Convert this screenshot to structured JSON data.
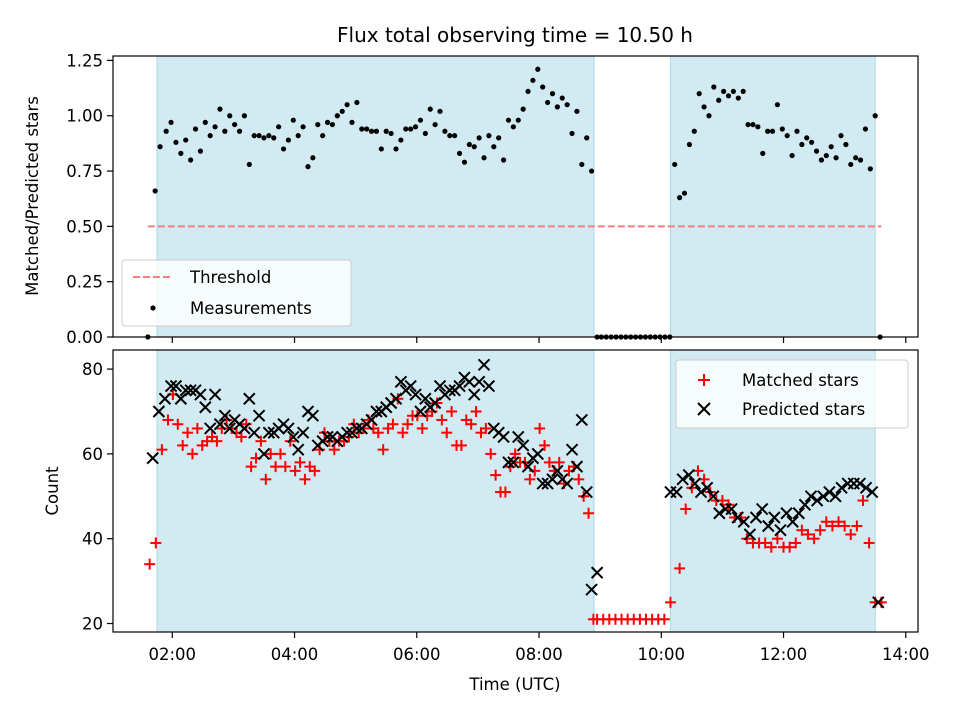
{
  "chart_data": [
    {
      "type": "scatter",
      "title": "Flux total observing time = 10.50 h",
      "ylabel": "Matched/Predicted stars",
      "xlabel": "",
      "ylim": [
        0,
        1.27
      ],
      "yticks": [
        0.0,
        0.25,
        0.5,
        0.75,
        1.0,
        1.25
      ],
      "ytick_labels": [
        "0.00",
        "0.25",
        "0.50",
        "0.75",
        "1.00",
        "1.25"
      ],
      "xlim_hours": [
        1.03,
        14.2
      ],
      "xticks_hours": [
        2,
        4,
        6,
        8,
        10,
        12,
        14
      ],
      "shaded_intervals_hours": [
        [
          1.75,
          8.9
        ],
        [
          10.15,
          13.5
        ]
      ],
      "shade_color": "#add8e6",
      "threshold": {
        "name": "Threshold",
        "value": 0.5,
        "x_range_hours": [
          1.6,
          13.6
        ],
        "color": "#f08080"
      },
      "legend": {
        "placement": "lower left",
        "entries": [
          "Threshold",
          "Measurements"
        ]
      },
      "series": [
        {
          "name": "Measurements",
          "color": "#000000",
          "x_hours": [
            1.6,
            1.72,
            1.8,
            1.9,
            1.98,
            2.06,
            2.14,
            2.22,
            2.3,
            2.38,
            2.46,
            2.54,
            2.62,
            2.7,
            2.78,
            2.86,
            2.94,
            3.02,
            3.1,
            3.18,
            3.26,
            3.34,
            3.42,
            3.5,
            3.58,
            3.66,
            3.74,
            3.82,
            3.9,
            3.98,
            4.06,
            4.14,
            4.22,
            4.3,
            4.38,
            4.46,
            4.54,
            4.62,
            4.7,
            4.78,
            4.86,
            4.94,
            5.02,
            5.1,
            5.18,
            5.26,
            5.34,
            5.42,
            5.5,
            5.58,
            5.66,
            5.74,
            5.82,
            5.9,
            5.98,
            6.06,
            6.14,
            6.22,
            6.3,
            6.38,
            6.46,
            6.54,
            6.62,
            6.7,
            6.78,
            6.86,
            6.94,
            7.02,
            7.1,
            7.18,
            7.26,
            7.34,
            7.42,
            7.5,
            7.58,
            7.66,
            7.74,
            7.82,
            7.9,
            7.98,
            8.06,
            8.14,
            8.22,
            8.3,
            8.38,
            8.46,
            8.54,
            8.62,
            8.7,
            8.78,
            8.86,
            8.95,
            9.02,
            9.1,
            9.18,
            9.26,
            9.34,
            9.42,
            9.5,
            9.58,
            9.66,
            9.74,
            9.82,
            9.9,
            9.98,
            10.06,
            10.14,
            10.22,
            10.3,
            10.38,
            10.46,
            10.54,
            10.62,
            10.7,
            10.78,
            10.86,
            10.94,
            11.02,
            11.1,
            11.18,
            11.26,
            11.34,
            11.42,
            11.5,
            11.58,
            11.66,
            11.74,
            11.82,
            11.9,
            11.98,
            12.06,
            12.14,
            12.22,
            12.3,
            12.38,
            12.46,
            12.54,
            12.62,
            12.7,
            12.78,
            12.86,
            12.94,
            13.02,
            13.1,
            13.18,
            13.26,
            13.34,
            13.42,
            13.5,
            13.58
          ],
          "y": [
            0.0,
            0.66,
            0.86,
            0.93,
            0.97,
            0.88,
            0.83,
            0.89,
            0.8,
            0.94,
            0.84,
            0.97,
            0.91,
            0.95,
            1.03,
            0.93,
            1.0,
            0.96,
            0.93,
            1.0,
            0.78,
            0.91,
            0.91,
            0.9,
            0.91,
            0.9,
            0.95,
            0.85,
            0.89,
            0.98,
            0.91,
            0.95,
            0.77,
            0.81,
            0.96,
            0.91,
            0.97,
            0.96,
            1.0,
            1.02,
            1.05,
            0.97,
            1.06,
            0.94,
            0.94,
            0.93,
            0.93,
            0.85,
            0.93,
            0.92,
            0.85,
            0.89,
            0.94,
            0.94,
            0.95,
            0.98,
            0.92,
            1.03,
            0.96,
            1.02,
            0.93,
            0.91,
            0.91,
            0.83,
            0.79,
            0.87,
            0.86,
            0.9,
            0.81,
            0.91,
            0.86,
            0.9,
            0.8,
            0.98,
            0.95,
            0.98,
            1.03,
            1.11,
            1.16,
            1.21,
            1.13,
            1.06,
            1.1,
            1.04,
            1.08,
            1.05,
            0.92,
            1.02,
            0.78,
            0.9,
            0.75,
            0.0,
            0.0,
            0.0,
            0.0,
            0.0,
            0.0,
            0.0,
            0.0,
            0.0,
            0.0,
            0.0,
            0.0,
            0.0,
            0.0,
            0.0,
            0.0,
            0.78,
            0.63,
            0.65,
            0.87,
            0.93,
            1.1,
            1.04,
            1.0,
            1.13,
            1.07,
            1.11,
            1.09,
            1.11,
            1.08,
            1.11,
            0.96,
            0.96,
            0.95,
            0.83,
            0.93,
            0.93,
            1.05,
            0.94,
            0.91,
            0.82,
            0.93,
            0.87,
            0.9,
            0.88,
            0.84,
            0.8,
            0.82,
            0.86,
            0.81,
            0.91,
            0.87,
            0.78,
            0.81,
            0.8,
            0.94,
            0.76,
            1.0,
            0.0
          ]
        }
      ]
    },
    {
      "type": "scatter",
      "title": "",
      "ylabel": "Count",
      "xlabel": "Time (UTC)",
      "ylim": [
        18,
        84.5
      ],
      "yticks": [
        20,
        40,
        60,
        80
      ],
      "ytick_labels": [
        "20",
        "40",
        "60",
        "80"
      ],
      "xlim_hours": [
        1.03,
        14.2
      ],
      "xticks_hours": [
        2,
        4,
        6,
        8,
        10,
        12,
        14
      ],
      "xtick_labels": [
        "02:00",
        "04:00",
        "06:00",
        "08:00",
        "10:00",
        "12:00",
        "14:00"
      ],
      "shaded_intervals_hours": [
        [
          1.75,
          8.9
        ],
        [
          10.15,
          13.5
        ]
      ],
      "legend": {
        "placement": "upper right",
        "entries": [
          "Matched stars",
          "Predicted stars"
        ]
      },
      "series": [
        {
          "name": "Matched stars",
          "marker": "plus",
          "color": "#ff0000",
          "x_hours": [
            1.63,
            1.73,
            1.83,
            1.93,
            2.01,
            2.09,
            2.17,
            2.25,
            2.33,
            2.41,
            2.49,
            2.57,
            2.65,
            2.73,
            2.81,
            2.89,
            2.97,
            3.05,
            3.13,
            3.21,
            3.29,
            3.37,
            3.45,
            3.53,
            3.61,
            3.69,
            3.77,
            3.85,
            3.93,
            4.01,
            4.09,
            4.17,
            4.25,
            4.33,
            4.41,
            4.49,
            4.57,
            4.65,
            4.73,
            4.81,
            4.89,
            4.97,
            5.05,
            5.13,
            5.21,
            5.29,
            5.37,
            5.45,
            5.53,
            5.61,
            5.69,
            5.77,
            5.85,
            5.93,
            6.01,
            6.09,
            6.17,
            6.25,
            6.33,
            6.41,
            6.49,
            6.57,
            6.65,
            6.73,
            6.81,
            6.89,
            6.97,
            7.05,
            7.13,
            7.21,
            7.29,
            7.37,
            7.45,
            7.53,
            7.61,
            7.69,
            7.77,
            7.85,
            7.93,
            8.01,
            8.09,
            8.17,
            8.25,
            8.33,
            8.41,
            8.49,
            8.57,
            8.65,
            8.73,
            8.81,
            8.89,
            8.95,
            9.05,
            9.15,
            9.25,
            9.35,
            9.45,
            9.55,
            9.65,
            9.75,
            9.85,
            9.95,
            10.05,
            10.15,
            10.3,
            10.4,
            10.5,
            10.6,
            10.7,
            10.8,
            10.9,
            11.0,
            11.1,
            11.2,
            11.3,
            11.4,
            11.5,
            11.6,
            11.7,
            11.8,
            11.9,
            12.0,
            12.1,
            12.2,
            12.3,
            12.4,
            12.5,
            12.6,
            12.7,
            12.8,
            12.9,
            13.0,
            13.1,
            13.2,
            13.3,
            13.4,
            13.5,
            13.6
          ],
          "y": [
            34,
            39,
            61,
            68,
            74,
            67,
            62,
            65,
            60,
            66,
            62,
            63,
            64,
            63,
            66,
            68,
            66,
            65,
            64,
            67,
            57,
            59,
            63,
            54,
            60,
            57,
            60,
            57,
            63,
            56,
            58,
            54,
            57,
            56,
            61,
            65,
            63,
            61,
            63,
            63,
            64,
            67,
            65,
            66,
            68,
            66,
            65,
            61,
            66,
            67,
            73,
            65,
            67,
            69,
            69,
            66,
            69,
            70,
            72,
            68,
            65,
            70,
            62,
            62,
            68,
            67,
            70,
            65,
            66,
            60,
            55,
            51,
            51,
            57,
            60,
            58,
            58,
            54,
            56,
            66,
            62,
            58,
            56,
            58,
            53,
            56,
            57,
            54,
            50,
            46,
            21,
            21,
            21,
            21,
            21,
            21,
            21,
            21,
            21,
            21,
            21,
            21,
            21,
            25,
            33,
            47,
            52,
            56,
            54,
            51,
            49,
            49,
            48,
            45,
            45,
            40,
            39,
            39,
            39,
            38,
            40,
            38,
            38,
            39,
            42,
            41,
            40,
            42,
            44,
            43,
            44,
            43,
            41,
            43,
            49,
            39,
            25,
            25
          ]
        },
        {
          "name": "Predicted stars",
          "marker": "x",
          "color": "#000000",
          "x_hours": [
            1.68,
            1.78,
            1.88,
            1.98,
            2.06,
            2.14,
            2.22,
            2.3,
            2.38,
            2.46,
            2.54,
            2.62,
            2.7,
            2.78,
            2.86,
            2.94,
            3.02,
            3.1,
            3.18,
            3.26,
            3.34,
            3.42,
            3.5,
            3.58,
            3.66,
            3.74,
            3.82,
            3.9,
            3.98,
            4.06,
            4.14,
            4.22,
            4.3,
            4.38,
            4.46,
            4.54,
            4.62,
            4.7,
            4.78,
            4.86,
            4.94,
            5.02,
            5.1,
            5.18,
            5.26,
            5.34,
            5.42,
            5.5,
            5.58,
            5.66,
            5.74,
            5.82,
            5.9,
            5.98,
            6.06,
            6.14,
            6.22,
            6.3,
            6.38,
            6.46,
            6.54,
            6.62,
            6.7,
            6.78,
            6.86,
            6.94,
            7.02,
            7.1,
            7.18,
            7.26,
            7.34,
            7.42,
            7.5,
            7.58,
            7.66,
            7.74,
            7.82,
            7.9,
            7.98,
            8.06,
            8.14,
            8.22,
            8.3,
            8.38,
            8.46,
            8.54,
            8.62,
            8.7,
            8.78,
            8.86,
            8.95,
            10.15,
            10.25,
            10.35,
            10.45,
            10.55,
            10.65,
            10.75,
            10.85,
            10.95,
            11.05,
            11.15,
            11.25,
            11.35,
            11.45,
            11.55,
            11.65,
            11.75,
            11.85,
            11.95,
            12.05,
            12.15,
            12.25,
            12.35,
            12.45,
            12.55,
            12.65,
            12.75,
            12.85,
            12.95,
            13.05,
            13.15,
            13.25,
            13.35,
            13.45,
            13.55
          ],
          "y": [
            59,
            70,
            73,
            76,
            76,
            73,
            75,
            75,
            75,
            74,
            71,
            66,
            74,
            67,
            69,
            66,
            68,
            67,
            66,
            73,
            65,
            69,
            60,
            65,
            65,
            66,
            67,
            66,
            64,
            61,
            65,
            70,
            69,
            62,
            63,
            64,
            64,
            63,
            64,
            65,
            65,
            66,
            66,
            67,
            68,
            70,
            70,
            71,
            72,
            73,
            77,
            75,
            76,
            74,
            70,
            73,
            71,
            72,
            76,
            74,
            75,
            75,
            76,
            78,
            77,
            74,
            77,
            81,
            76,
            66,
            65,
            64,
            58,
            58,
            64,
            62,
            57,
            59,
            60,
            53,
            53,
            54,
            56,
            54,
            53,
            61,
            57,
            68,
            51,
            28,
            32,
            51,
            51,
            54,
            55,
            53,
            51,
            52,
            50,
            46,
            47,
            47,
            45,
            44,
            41,
            45,
            47,
            43,
            45,
            42,
            46,
            44,
            46,
            48,
            50,
            49,
            50,
            51,
            50,
            52,
            53,
            53,
            53,
            52,
            51,
            25
          ]
        }
      ]
    }
  ]
}
